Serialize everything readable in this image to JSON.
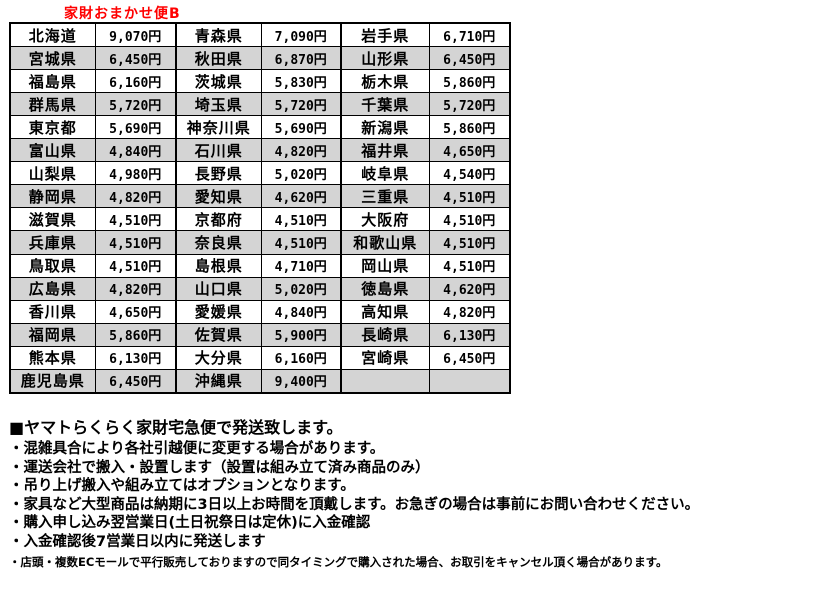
{
  "title": {
    "text": "家財おまかせ便B"
  },
  "shipping_table": {
    "rows": [
      [
        "北海道",
        "9,070円",
        "青森県",
        "7,090円",
        "岩手県",
        "6,710円"
      ],
      [
        "宮城県",
        "6,450円",
        "秋田県",
        "6,870円",
        "山形県",
        "6,450円"
      ],
      [
        "福島県",
        "6,160円",
        "茨城県",
        "5,830円",
        "栃木県",
        "5,860円"
      ],
      [
        "群馬県",
        "5,720円",
        "埼玉県",
        "5,720円",
        "千葉県",
        "5,720円"
      ],
      [
        "東京都",
        "5,690円",
        "神奈川県",
        "5,690円",
        "新潟県",
        "5,860円"
      ],
      [
        "富山県",
        "4,840円",
        "石川県",
        "4,820円",
        "福井県",
        "4,650円"
      ],
      [
        "山梨県",
        "4,980円",
        "長野県",
        "5,020円",
        "岐阜県",
        "4,540円"
      ],
      [
        "静岡県",
        "4,820円",
        "愛知県",
        "4,620円",
        "三重県",
        "4,510円"
      ],
      [
        "滋賀県",
        "4,510円",
        "京都府",
        "4,510円",
        "大阪府",
        "4,510円"
      ],
      [
        "兵庫県",
        "4,510円",
        "奈良県",
        "4,510円",
        "和歌山県",
        "4,510円"
      ],
      [
        "鳥取県",
        "4,510円",
        "島根県",
        "4,710円",
        "岡山県",
        "4,510円"
      ],
      [
        "広島県",
        "4,820円",
        "山口県",
        "5,020円",
        "徳島県",
        "4,620円"
      ],
      [
        "香川県",
        "4,650円",
        "愛媛県",
        "4,840円",
        "高知県",
        "4,820円"
      ],
      [
        "福岡県",
        "5,860円",
        "佐賀県",
        "5,900円",
        "長崎県",
        "6,130円"
      ],
      [
        "熊本県",
        "6,130円",
        "大分県",
        "6,160円",
        "宮崎県",
        "6,450円"
      ],
      [
        "鹿児島県",
        "6,450円",
        "沖縄県",
        "9,400円",
        "",
        ""
      ]
    ]
  },
  "notes": {
    "heading": "■ヤマトらくらく家財宅急便で発送致します。",
    "bullets": [
      "・混雑具合により各社引越便に変更する場合があります。",
      "・運送会社で搬入・設置します（設置は組み立て済み商品のみ）",
      "・吊り上げ搬入や組み立てはオプションとなります。",
      "・家具など大型商品は納期に3日以上お時間を頂戴します。お急ぎの場合は事前にお問い合わせください。",
      "・購入申し込み翌営業日(土日祝祭日は定休)に入金確認",
      "・入金確認後7営業日以内に発送します"
    ],
    "small_note": "・店頭・複数ECモールで平行販売しておりますので同タイミングで購入された場合、お取引をキャンセル頂く場合があります。"
  },
  "colors": {
    "title_red": "#ff0000",
    "row_alt_gray": "#d4d4d4",
    "border_black": "#000000",
    "background": "#ffffff"
  }
}
